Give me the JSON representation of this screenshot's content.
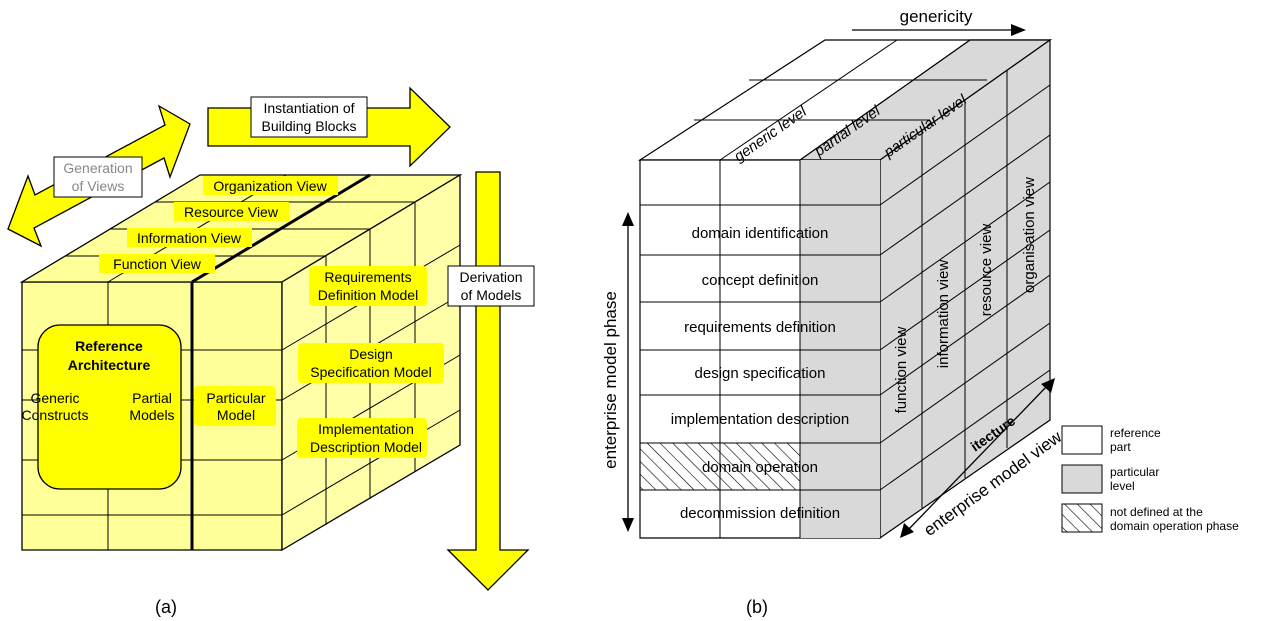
{
  "panel_a": {
    "caption": "(a)",
    "arrow_instantiation": [
      "Instantiation of",
      "Building Blocks"
    ],
    "arrow_generation": [
      "Generation",
      "of Views"
    ],
    "arrow_derivation": [
      "Derivation",
      "of Models"
    ],
    "views": [
      "Organization View",
      "Resource View",
      "Information View",
      "Function View"
    ],
    "models": [
      [
        "Requirements",
        "Definition Model"
      ],
      [
        "Design",
        "Specification Model"
      ],
      [
        "Implementation",
        "Description Model"
      ]
    ],
    "reference": [
      "Reference",
      "Architecture"
    ],
    "generic": [
      "Generic",
      "Constructs"
    ],
    "partial": [
      "Partial",
      "Models"
    ],
    "particular": [
      "Particular",
      "Model"
    ]
  },
  "panel_b": {
    "caption": "(b)",
    "genericity": "genericity",
    "levels": [
      "generic level",
      "partial level",
      "particular level"
    ],
    "phase_axis": "enterprise model phase",
    "view_axis": "enterprise model view",
    "phases": [
      "domain identification",
      "concept definition",
      "requirements definition",
      "design specification",
      "implementation description",
      "domain operation",
      "decommission definition"
    ],
    "views": [
      "function view",
      "information view",
      "resource view",
      "organisation view"
    ],
    "architecture_fragment": "itecture",
    "legend": [
      {
        "lines": [
          "reference",
          "part"
        ]
      },
      {
        "lines": [
          "particular",
          "level"
        ]
      },
      {
        "lines": [
          "not defined at the",
          "domain operation phase"
        ]
      }
    ]
  },
  "colors": {
    "cube_yellow": "#ffff99",
    "cube_side": "#ffffa8",
    "label_yellow": "#ffff00",
    "arrow_yellow": "#ffff00",
    "gray": "#d9d9d9",
    "line": "#000000",
    "generation_text": "#888888"
  }
}
